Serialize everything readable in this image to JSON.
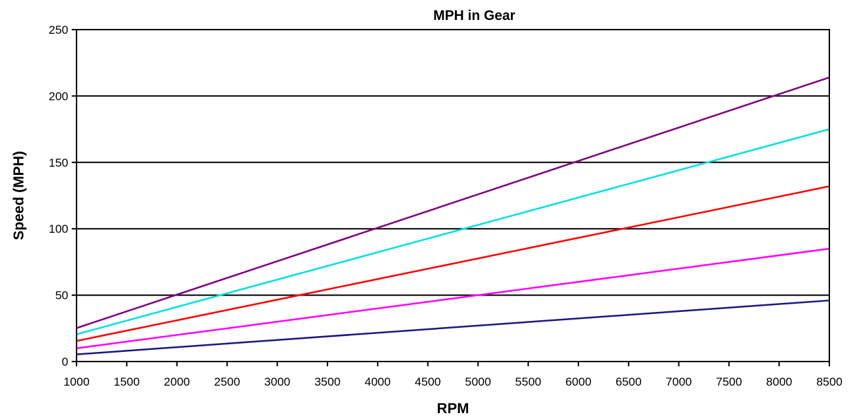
{
  "chart_data": {
    "type": "line",
    "title": "MPH in Gear",
    "xlabel": "RPM",
    "ylabel": "Speed (MPH)",
    "xlim": [
      1000,
      8500
    ],
    "ylim": [
      0,
      250
    ],
    "xticks": [
      1000,
      1500,
      2000,
      2500,
      3000,
      3500,
      4000,
      4500,
      5000,
      5500,
      6000,
      6500,
      7000,
      7500,
      8000,
      8500
    ],
    "yticks": [
      0,
      50,
      100,
      150,
      200,
      250
    ],
    "grid": "horizontal",
    "legend": "none",
    "x": [
      1000,
      8500
    ],
    "series": [
      {
        "color": "#1a1a80",
        "values": [
          5.4,
          46
        ]
      },
      {
        "color": "#ff00ff",
        "values": [
          10,
          85
        ]
      },
      {
        "color": "#ff0000",
        "values": [
          15.5,
          132
        ]
      },
      {
        "color": "#00e0e0",
        "values": [
          20.5,
          175
        ]
      },
      {
        "color": "#800080",
        "values": [
          25.2,
          214
        ]
      }
    ]
  }
}
